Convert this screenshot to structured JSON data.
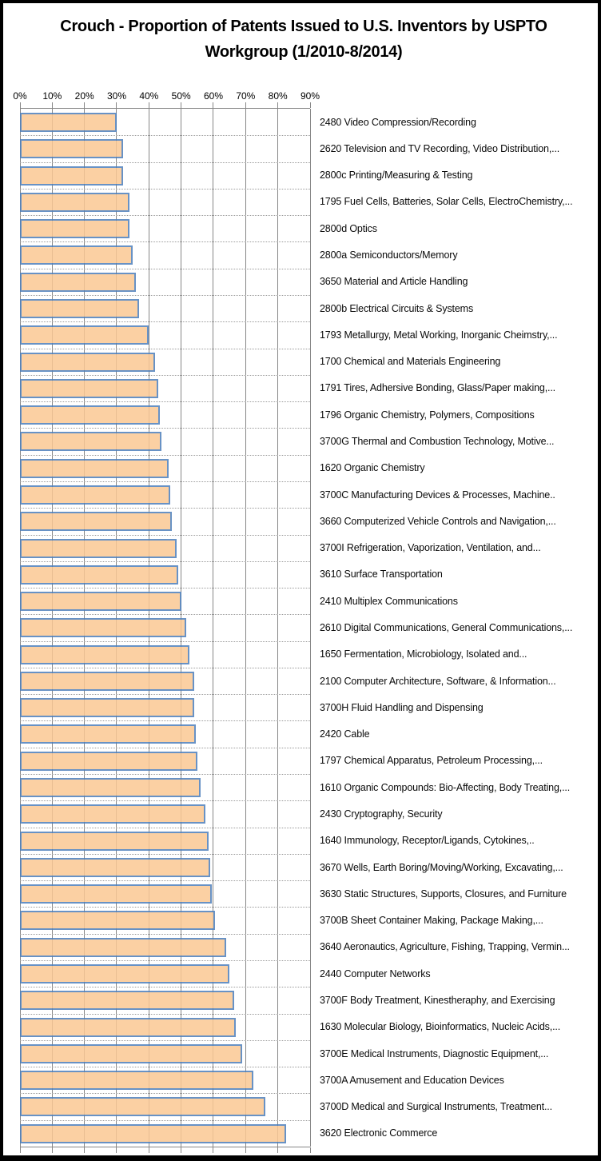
{
  "title": "Crouch - Proportion of Patents Issued to U.S. Inventors by USPTO Workgroup (1/2010-8/2014)",
  "chart_data": {
    "type": "bar",
    "orientation": "horizontal",
    "title": "Crouch - Proportion of Patents Issued to U.S. Inventors by USPTO Workgroup (1/2010-8/2014)",
    "xlabel": "",
    "ylabel": "",
    "x_range": [
      0,
      90
    ],
    "x_ticks": [
      "0%",
      "10%",
      "20%",
      "30%",
      "40%",
      "50%",
      "60%",
      "70%",
      "80%",
      "90%"
    ],
    "grid": true,
    "legend": "none",
    "categories": [
      "2480 Video Compression/Recording",
      "2620 Television and TV Recording, Video Distribution,...",
      "2800c Printing/Measuring & Testing",
      "1795 Fuel Cells, Batteries, Solar Cells, ElectroChemistry,...",
      "2800d Optics",
      "2800a Semiconductors/Memory",
      "3650 Material and Article Handling",
      "2800b Electrical Circuits & Systems",
      "1793 Metallurgy, Metal Working, Inorganic Cheimstry,...",
      "1700 Chemical and Materials Engineering",
      "1791 Tires, Adhersive Bonding, Glass/Paper making,...",
      "1796 Organic Chemistry, Polymers, Compositions",
      "3700G Thermal and Combustion Technology, Motive...",
      "1620 Organic Chemistry",
      "3700C Manufacturing Devices & Processes, Machine..",
      "3660 Computerized Vehicle Controls and Navigation,...",
      "3700I Refrigeration, Vaporization, Ventilation, and...",
      "3610 Surface Transportation",
      "2410 Multiplex Communications",
      "2610 Digital Communications, General Communications,...",
      "1650 Fermentation, Microbiology, Isolated and...",
      "2100 Computer Architecture, Software, & Information...",
      "3700H Fluid Handling and Dispensing",
      "2420 Cable",
      "1797 Chemical Apparatus, Petroleum Processing,...",
      "1610 Organic Compounds: Bio-Affecting, Body Treating,...",
      "2430 Cryptography, Security",
      "1640 Immunology, Receptor/Ligands, Cytokines,..",
      "3670 Wells, Earth Boring/Moving/Working, Excavating,...",
      "3630 Static Structures, Supports, Closures, and Furniture",
      "3700B Sheet Container Making, Package Making,...",
      "3640 Aeronautics, Agriculture, Fishing, Trapping, Vermin...",
      "2440 Computer Networks",
      "3700F Body Treatment, Kinestheraphy, and Exercising",
      "1630 Molecular Biology, Bioinformatics, Nucleic Acids,...",
      "3700E Medical Instruments, Diagnostic Equipment,...",
      "3700A Amusement and Education Devices",
      "3700D Medical and Surgical Instruments, Treatment...",
      "3620 Electronic Commerce"
    ],
    "values": [
      30,
      32,
      32,
      34,
      34,
      35,
      36,
      37,
      40,
      42,
      43,
      43.5,
      44,
      46,
      46.5,
      47,
      48.5,
      49,
      50,
      51.5,
      52.5,
      54,
      54,
      54.5,
      55,
      56,
      57.5,
      58.5,
      59,
      59.5,
      60.5,
      64,
      65,
      66.5,
      67,
      69,
      72.5,
      76,
      82.5
    ],
    "colors": {
      "bar_fill": "#FBC894",
      "bar_border": "#4E80BC",
      "gridline": "#878787",
      "row_gridline": "#9B9B9B",
      "frame": "#000000",
      "background": "#FFFFFF"
    }
  }
}
